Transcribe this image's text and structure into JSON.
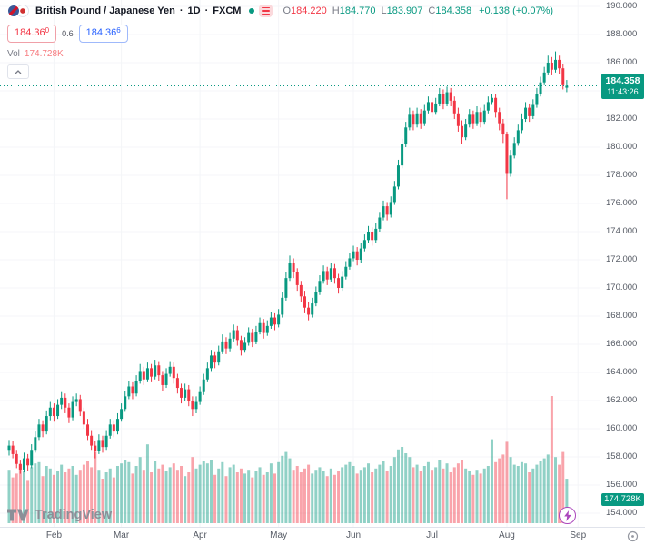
{
  "header": {
    "symbol_title": "British Pound / Japanese Yen",
    "separator": "·",
    "timeframe": "1D",
    "exchange": "FXCM",
    "ohlc": {
      "o_label": "O",
      "o": "184.220",
      "h_label": "H",
      "h": "184.770",
      "l_label": "L",
      "l": "183.907",
      "c_label": "C",
      "c": "184.358",
      "change": "+0.138 (+0.07%)"
    },
    "sell": {
      "price": "184.36",
      "sup": "0"
    },
    "spread": "0.6",
    "buy": {
      "price": "184.36",
      "sup": "6"
    },
    "volume": {
      "label": "Vol",
      "value": "174.728K"
    }
  },
  "price_axis": {
    "ticks": [
      190,
      188,
      186,
      184,
      182,
      180,
      178,
      176,
      174,
      172,
      170,
      168,
      166,
      164,
      162,
      160,
      158,
      156,
      154
    ],
    "badge": {
      "price": "184.358",
      "countdown": "11:43:26"
    },
    "volume_badge": "174.728K"
  },
  "time_axis": {
    "months": [
      {
        "label": "Feb",
        "bar": 12
      },
      {
        "label": "Mar",
        "bar": 30
      },
      {
        "label": "Apr",
        "bar": 51
      },
      {
        "label": "May",
        "bar": 72
      },
      {
        "label": "Jun",
        "bar": 92
      },
      {
        "label": "Jul",
        "bar": 113
      },
      {
        "label": "Aug",
        "bar": 133
      },
      {
        "label": "Sep",
        "bar": 152
      }
    ]
  },
  "watermark": {
    "text": "TradingView"
  },
  "icons": {
    "symbol": "currency-pair-flags-icon",
    "market_status": "market-open-dot",
    "legend_toggle": "details-icon",
    "collapse": "chevron-up-icon",
    "quick_trade": "lightning-icon",
    "watermark_logo": "tradingview-logo-icon",
    "axis_corner": "axis-settings-icon"
  },
  "chart_data": {
    "type": "candlestick",
    "title": "British Pound / Japanese Yen",
    "timeframe": "1D",
    "exchange": "FXCM",
    "last_price": 184.358,
    "last_volume_k": 174.728,
    "price_range": [
      154,
      190
    ],
    "volume_unit": "K",
    "legend_position": "top-left",
    "grid": true,
    "colors": {
      "up": "#089981",
      "down": "#f23645",
      "vol_up": "rgba(8,153,129,0.45)",
      "vol_down": "rgba(242,54,69,0.45)",
      "last_price_line": "#089981",
      "badge": "#089981",
      "buy": "#2962ff",
      "sell": "#f23645"
    },
    "bars_format": [
      "open",
      "high",
      "low",
      "close",
      "volume_k"
    ],
    "bars": [
      [
        158.5,
        159.2,
        158.1,
        158.8,
        210
      ],
      [
        158.8,
        159.1,
        157.9,
        158.2,
        180
      ],
      [
        158.2,
        158.5,
        157.2,
        157.5,
        195
      ],
      [
        157.5,
        157.8,
        156.8,
        157.1,
        230
      ],
      [
        157.1,
        158.3,
        156.9,
        157.9,
        205
      ],
      [
        157.9,
        158.2,
        157.0,
        157.4,
        170
      ],
      [
        157.4,
        158.9,
        157.2,
        158.5,
        220
      ],
      [
        158.5,
        159.8,
        158.3,
        159.4,
        235
      ],
      [
        159.4,
        160.7,
        159.2,
        160.3,
        240
      ],
      [
        160.3,
        160.6,
        159.4,
        159.8,
        185
      ],
      [
        159.8,
        161.3,
        159.6,
        160.9,
        225
      ],
      [
        160.9,
        161.9,
        160.6,
        161.5,
        215
      ],
      [
        161.5,
        161.8,
        160.5,
        160.9,
        190
      ],
      [
        160.9,
        162.1,
        160.7,
        161.7,
        205
      ],
      [
        161.7,
        162.6,
        161.4,
        162.2,
        230
      ],
      [
        162.2,
        162.5,
        161.1,
        161.5,
        200
      ],
      [
        161.5,
        161.8,
        160.4,
        160.8,
        215
      ],
      [
        160.8,
        162.3,
        160.6,
        161.9,
        225
      ],
      [
        161.9,
        162.5,
        161.6,
        162.1,
        190
      ],
      [
        162.1,
        162.4,
        160.9,
        161.2,
        210
      ],
      [
        161.2,
        161.5,
        160.0,
        160.3,
        230
      ],
      [
        160.3,
        160.7,
        159.2,
        159.5,
        245
      ],
      [
        159.5,
        159.9,
        158.5,
        158.8,
        220
      ],
      [
        158.8,
        159.1,
        157.9,
        158.4,
        280
      ],
      [
        158.4,
        159.6,
        158.2,
        159.2,
        210
      ],
      [
        159.2,
        159.5,
        158.3,
        158.7,
        175
      ],
      [
        158.7,
        159.9,
        158.5,
        159.5,
        200
      ],
      [
        159.5,
        160.7,
        159.3,
        160.3,
        215
      ],
      [
        160.3,
        160.6,
        159.4,
        159.8,
        180
      ],
      [
        159.8,
        161.1,
        159.6,
        160.7,
        225
      ],
      [
        160.7,
        161.8,
        160.5,
        161.4,
        235
      ],
      [
        161.4,
        162.7,
        161.2,
        162.3,
        250
      ],
      [
        162.3,
        163.4,
        162.1,
        163.0,
        240
      ],
      [
        163.0,
        163.3,
        162.1,
        162.5,
        195
      ],
      [
        162.5,
        163.8,
        162.3,
        163.4,
        225
      ],
      [
        163.4,
        164.6,
        163.2,
        164.1,
        260
      ],
      [
        164.1,
        164.4,
        163.1,
        163.5,
        210
      ],
      [
        163.5,
        164.7,
        163.3,
        164.3,
        310
      ],
      [
        164.3,
        164.6,
        163.3,
        163.7,
        200
      ],
      [
        163.7,
        164.9,
        163.5,
        164.5,
        245
      ],
      [
        164.5,
        164.8,
        163.4,
        163.8,
        215
      ],
      [
        163.8,
        164.1,
        162.7,
        163.1,
        230
      ],
      [
        163.1,
        164.3,
        162.9,
        163.9,
        205
      ],
      [
        163.9,
        164.8,
        163.7,
        164.4,
        220
      ],
      [
        164.4,
        164.7,
        163.2,
        163.6,
        235
      ],
      [
        163.6,
        163.9,
        162.5,
        162.9,
        210
      ],
      [
        162.9,
        163.2,
        161.8,
        162.2,
        225
      ],
      [
        162.2,
        163.2,
        162.0,
        162.8,
        185
      ],
      [
        162.8,
        163.1,
        161.6,
        162.0,
        200
      ],
      [
        162.0,
        162.3,
        160.9,
        161.4,
        260
      ],
      [
        161.4,
        162.3,
        161.1,
        161.9,
        215
      ],
      [
        161.9,
        163.0,
        161.7,
        162.6,
        230
      ],
      [
        162.6,
        163.9,
        162.4,
        163.5,
        245
      ],
      [
        163.5,
        164.7,
        163.3,
        164.3,
        235
      ],
      [
        164.3,
        165.6,
        164.1,
        165.2,
        250
      ],
      [
        165.2,
        165.5,
        164.3,
        164.7,
        190
      ],
      [
        164.7,
        165.9,
        164.5,
        165.5,
        215
      ],
      [
        165.5,
        166.7,
        165.3,
        166.2,
        240
      ],
      [
        166.2,
        166.5,
        165.3,
        165.7,
        185
      ],
      [
        165.7,
        166.8,
        165.5,
        166.4,
        220
      ],
      [
        166.4,
        167.4,
        166.2,
        167.0,
        230
      ],
      [
        167.0,
        167.3,
        165.9,
        166.3,
        200
      ],
      [
        166.3,
        166.6,
        165.2,
        165.6,
        215
      ],
      [
        165.6,
        166.5,
        165.4,
        166.1,
        195
      ],
      [
        166.1,
        167.2,
        165.9,
        166.8,
        210
      ],
      [
        166.8,
        167.1,
        165.8,
        166.2,
        180
      ],
      [
        166.2,
        167.3,
        166.0,
        166.9,
        205
      ],
      [
        166.9,
        167.9,
        166.7,
        167.5,
        220
      ],
      [
        167.5,
        167.8,
        166.4,
        166.8,
        190
      ],
      [
        166.8,
        167.7,
        166.6,
        167.3,
        200
      ],
      [
        167.3,
        168.3,
        167.1,
        167.9,
        235
      ],
      [
        167.9,
        168.2,
        167.0,
        167.4,
        195
      ],
      [
        167.4,
        168.5,
        167.2,
        168.1,
        240
      ],
      [
        168.1,
        169.7,
        167.9,
        169.3,
        265
      ],
      [
        169.3,
        171.1,
        169.1,
        170.7,
        280
      ],
      [
        170.7,
        172.3,
        170.5,
        171.8,
        255
      ],
      [
        171.8,
        172.1,
        170.7,
        171.1,
        210
      ],
      [
        171.1,
        171.4,
        169.8,
        170.2,
        225
      ],
      [
        170.2,
        170.5,
        169.0,
        169.4,
        200
      ],
      [
        169.4,
        169.8,
        168.2,
        168.6,
        215
      ],
      [
        168.6,
        169.0,
        167.7,
        168.1,
        230
      ],
      [
        168.1,
        169.3,
        167.9,
        168.9,
        195
      ],
      [
        168.9,
        170.1,
        168.7,
        169.7,
        210
      ],
      [
        169.7,
        170.9,
        169.5,
        170.5,
        220
      ],
      [
        170.5,
        171.6,
        170.3,
        171.2,
        205
      ],
      [
        171.2,
        171.5,
        170.2,
        170.6,
        185
      ],
      [
        170.6,
        171.8,
        170.4,
        171.4,
        215
      ],
      [
        171.4,
        171.7,
        170.3,
        170.7,
        190
      ],
      [
        170.7,
        171.0,
        169.6,
        170.0,
        205
      ],
      [
        170.0,
        171.2,
        169.8,
        170.8,
        220
      ],
      [
        170.8,
        171.9,
        170.6,
        171.5,
        230
      ],
      [
        171.5,
        172.5,
        171.3,
        172.1,
        240
      ],
      [
        172.1,
        173.0,
        171.9,
        172.6,
        225
      ],
      [
        172.6,
        172.9,
        171.6,
        172.0,
        195
      ],
      [
        172.0,
        173.2,
        171.8,
        172.8,
        210
      ],
      [
        172.8,
        173.8,
        172.6,
        173.4,
        220
      ],
      [
        173.4,
        174.4,
        173.2,
        174.0,
        235
      ],
      [
        174.0,
        174.3,
        173.0,
        173.4,
        200
      ],
      [
        173.4,
        174.6,
        173.2,
        174.2,
        215
      ],
      [
        174.2,
        175.4,
        174.0,
        175.0,
        230
      ],
      [
        175.0,
        176.2,
        174.8,
        175.8,
        245
      ],
      [
        175.8,
        176.1,
        174.8,
        175.2,
        205
      ],
      [
        175.2,
        176.5,
        175.0,
        176.1,
        225
      ],
      [
        176.1,
        177.6,
        175.9,
        177.2,
        260
      ],
      [
        177.2,
        179.1,
        177.0,
        178.7,
        290
      ],
      [
        178.7,
        180.6,
        178.5,
        180.2,
        300
      ],
      [
        180.2,
        181.8,
        180.0,
        181.4,
        275
      ],
      [
        181.4,
        182.8,
        181.2,
        182.3,
        260
      ],
      [
        182.3,
        182.6,
        181.2,
        181.6,
        220
      ],
      [
        181.6,
        182.8,
        181.4,
        182.4,
        230
      ],
      [
        182.4,
        182.7,
        181.3,
        181.7,
        205
      ],
      [
        181.7,
        183.0,
        181.5,
        182.6,
        225
      ],
      [
        182.6,
        183.6,
        182.4,
        183.2,
        240
      ],
      [
        183.2,
        183.5,
        182.1,
        182.5,
        210
      ],
      [
        182.5,
        183.5,
        182.3,
        183.1,
        220
      ],
      [
        183.1,
        184.2,
        182.9,
        183.8,
        250
      ],
      [
        183.8,
        184.1,
        182.7,
        183.1,
        215
      ],
      [
        183.1,
        184.3,
        182.9,
        183.9,
        235
      ],
      [
        183.9,
        184.2,
        182.9,
        183.3,
        200
      ],
      [
        183.3,
        183.6,
        182.0,
        182.4,
        220
      ],
      [
        182.4,
        182.8,
        181.1,
        181.5,
        235
      ],
      [
        181.5,
        181.9,
        180.2,
        180.7,
        250
      ],
      [
        180.7,
        182.0,
        180.5,
        181.6,
        215
      ],
      [
        181.6,
        182.7,
        181.4,
        182.3,
        205
      ],
      [
        182.3,
        182.6,
        181.3,
        181.7,
        190
      ],
      [
        181.7,
        182.9,
        181.5,
        182.5,
        210
      ],
      [
        182.5,
        182.8,
        181.4,
        181.8,
        195
      ],
      [
        181.8,
        183.0,
        181.6,
        182.6,
        215
      ],
      [
        182.6,
        183.6,
        182.4,
        183.2,
        225
      ],
      [
        183.2,
        183.8,
        183.0,
        183.5,
        330
      ],
      [
        183.5,
        183.8,
        182.1,
        182.5,
        240
      ],
      [
        182.5,
        182.8,
        181.2,
        181.7,
        255
      ],
      [
        181.7,
        182.0,
        180.3,
        180.9,
        270
      ],
      [
        180.9,
        181.1,
        176.3,
        178.1,
        320
      ],
      [
        178.1,
        179.8,
        177.9,
        179.4,
        260
      ],
      [
        179.4,
        180.7,
        179.2,
        180.3,
        230
      ],
      [
        180.3,
        181.6,
        180.1,
        181.2,
        225
      ],
      [
        181.2,
        182.4,
        181.0,
        182.0,
        240
      ],
      [
        182.0,
        183.2,
        181.8,
        182.8,
        235
      ],
      [
        182.8,
        183.1,
        181.8,
        182.2,
        200
      ],
      [
        182.2,
        183.4,
        182.0,
        183.0,
        215
      ],
      [
        183.0,
        184.2,
        182.8,
        183.8,
        230
      ],
      [
        183.8,
        185.0,
        183.6,
        184.6,
        245
      ],
      [
        184.6,
        185.7,
        184.4,
        185.3,
        255
      ],
      [
        185.3,
        186.5,
        185.1,
        186.0,
        270
      ],
      [
        186.0,
        186.4,
        185.1,
        185.5,
        500
      ],
      [
        185.5,
        186.8,
        185.3,
        186.2,
        260
      ],
      [
        186.2,
        186.5,
        185.2,
        185.6,
        230
      ],
      [
        185.6,
        185.9,
        184.1,
        184.4,
        280
      ],
      [
        184.22,
        184.77,
        183.907,
        184.358,
        174.728
      ]
    ]
  }
}
